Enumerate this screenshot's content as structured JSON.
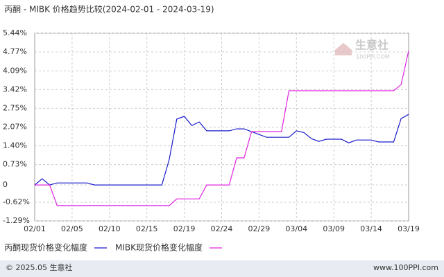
{
  "chart_data": {
    "type": "line",
    "title": "丙酮 - MIBK 价格趋势比较(2024-02-01 - 2024-03-19)",
    "categories": [
      "02/01",
      null,
      null,
      null,
      null,
      "02/05",
      null,
      null,
      null,
      null,
      "02/10",
      null,
      null,
      null,
      null,
      "02/15",
      null,
      null,
      null,
      null,
      "02/19",
      null,
      null,
      null,
      null,
      "02/24",
      null,
      null,
      null,
      null,
      "02/29",
      null,
      null,
      null,
      null,
      "03/04",
      null,
      null,
      null,
      null,
      "03/09",
      null,
      null,
      null,
      null,
      "03/14",
      null,
      null,
      null,
      null,
      "03/19"
    ],
    "series": [
      {
        "name": "丙酮现货价格变化幅度",
        "color": "#1a1acc",
        "values": [
          0,
          0.22,
          0,
          0.07,
          0.07,
          0.07,
          0.07,
          0.07,
          0,
          0,
          0,
          0,
          0,
          0,
          0,
          0,
          0,
          0,
          0.92,
          2.36,
          2.46,
          2.13,
          2.26,
          1.94,
          1.94,
          1.94,
          1.94,
          2.01,
          2.01,
          1.91,
          1.81,
          1.71,
          1.71,
          1.71,
          1.71,
          1.94,
          1.88,
          1.66,
          1.56,
          1.64,
          1.64,
          1.64,
          1.51,
          1.61,
          1.61,
          1.61,
          1.54,
          1.54,
          1.54,
          2.38,
          2.53
        ]
      },
      {
        "name": "MIBK现货价格变化幅度",
        "color": "#e020e0",
        "values": [
          0,
          0,
          0,
          -0.74,
          -0.74,
          -0.74,
          -0.74,
          -0.74,
          -0.74,
          -0.74,
          -0.74,
          -0.74,
          -0.74,
          -0.74,
          -0.74,
          -0.74,
          -0.74,
          -0.74,
          -0.74,
          -0.5,
          -0.5,
          -0.5,
          -0.5,
          0,
          0,
          0,
          0,
          0.97,
          0.97,
          1.91,
          1.91,
          1.91,
          1.91,
          1.91,
          3.38,
          3.38,
          3.38,
          3.38,
          3.38,
          3.38,
          3.38,
          3.38,
          3.38,
          3.38,
          3.38,
          3.38,
          3.38,
          3.38,
          3.38,
          3.6,
          4.81
        ]
      }
    ],
    "ylim": [
      -1.29,
      5.44
    ],
    "yticks": [
      {
        "value": -1.29,
        "label": "-1.29%"
      },
      {
        "value": -0.62,
        "label": "-0.62%"
      },
      0,
      {
        "value": 0.73,
        "label": "0.73%"
      },
      {
        "value": 1.4,
        "label": "1.40%"
      },
      {
        "value": 2.07,
        "label": "2.07%"
      },
      {
        "value": 2.75,
        "label": "2.75%"
      },
      {
        "value": 3.42,
        "label": "3.42%"
      },
      {
        "value": 4.09,
        "label": "4.09%"
      },
      {
        "value": 4.77,
        "label": "4.77%"
      },
      {
        "value": 5.44,
        "label": "5.44%"
      }
    ],
    "grid": true,
    "watermark": {
      "brand": "生意社",
      "site": "100PPI.COM"
    }
  },
  "footer": {
    "copyright": "© 2025.05 生意社",
    "site": "www.100PPI.com"
  }
}
